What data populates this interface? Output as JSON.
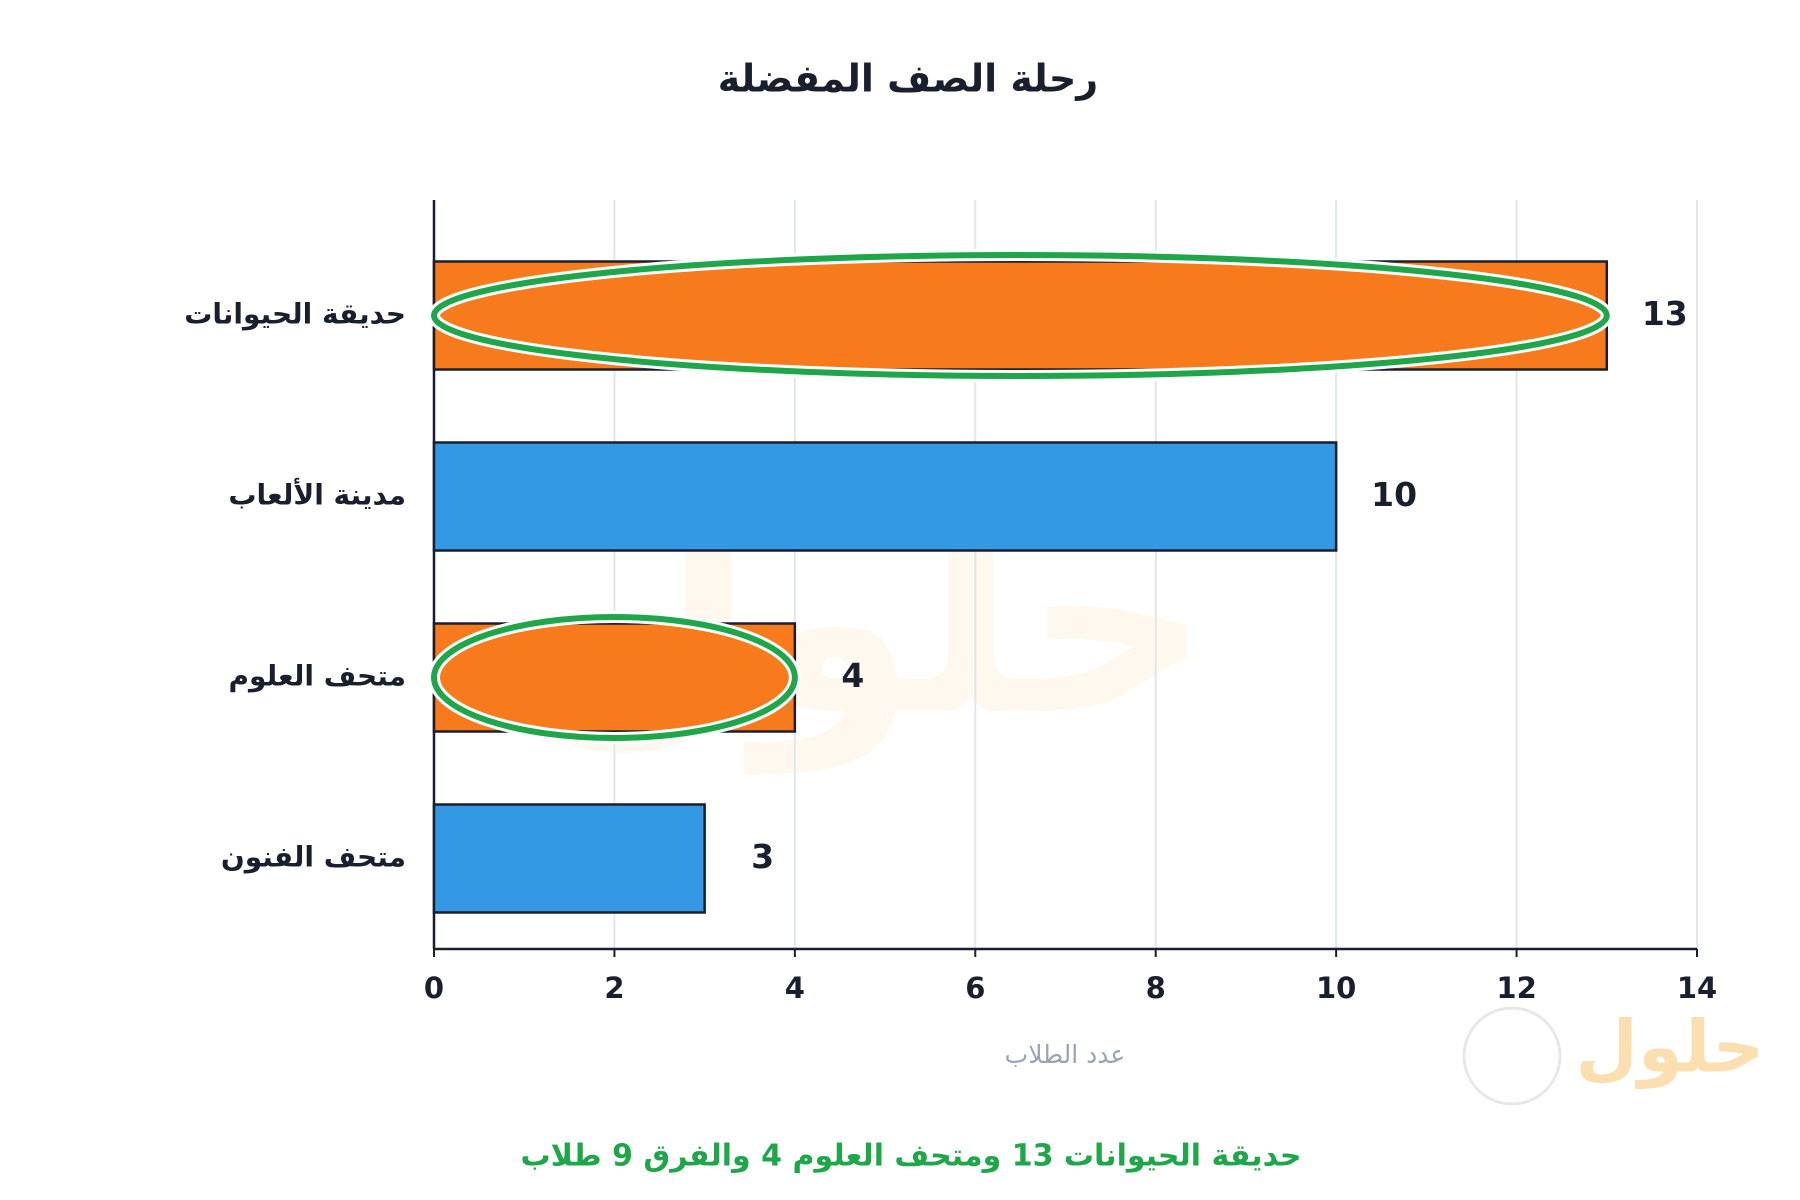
{
  "chart_data": {
    "type": "bar",
    "orientation": "horizontal",
    "title": "رحلة الصف المفضلة",
    "categories": [
      "حديقة الحيوانات",
      "مدينة الألعاب",
      "متحف العلوم",
      "متحف الفنون"
    ],
    "values": [
      13,
      10,
      4,
      3
    ],
    "colors": [
      "#f77a1c",
      "#3399e5",
      "#f77a1c",
      "#3399e5"
    ],
    "highlighted": [
      true,
      false,
      true,
      false
    ],
    "highlight_color": "#1fa64a",
    "xlim": [
      0,
      14
    ],
    "xticks": [
      0,
      2,
      4,
      6,
      8,
      10,
      12,
      14
    ],
    "xlabel": "عدد الطلاب",
    "grid": true,
    "annotation": "حديقة الحيوانات 13 ومتحف العلوم 4 والفرق 9 طلاب",
    "annotation_color": "#1fa64a"
  },
  "watermark": "حلول"
}
